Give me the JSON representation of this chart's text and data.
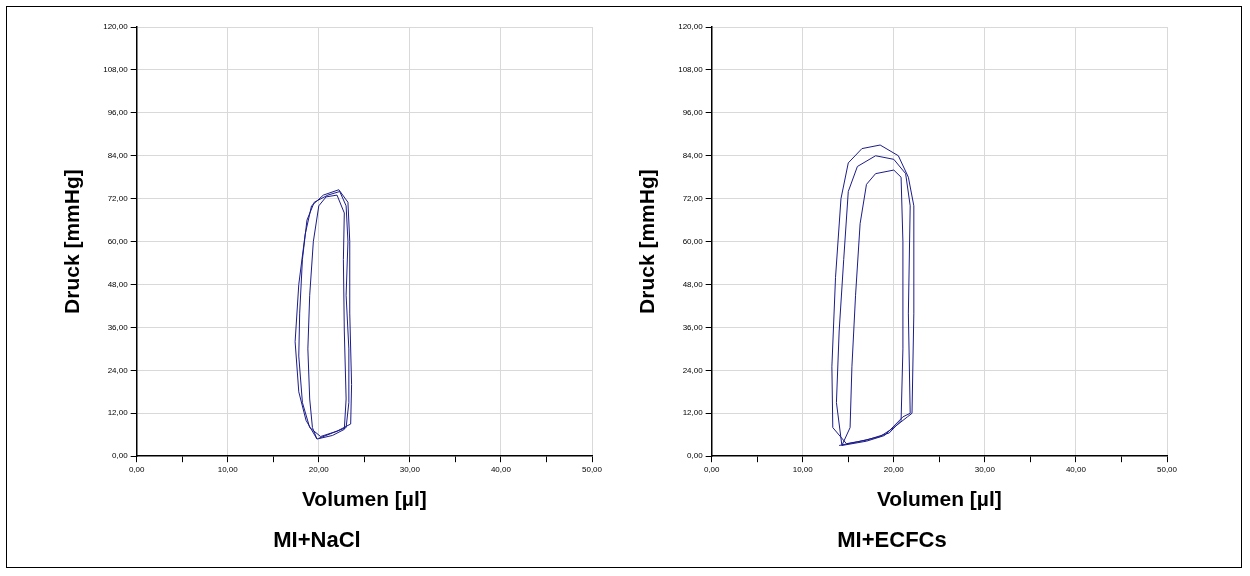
{
  "chart_data": [
    {
      "type": "line",
      "title": "MI+NaCl",
      "xlabel": "Volumen [µl]",
      "ylabel": "Druck [mmHg]",
      "xlim": [
        0,
        50
      ],
      "ylim": [
        0,
        120
      ],
      "grid": true,
      "legend": false,
      "marker": "none",
      "line_style": "solid",
      "xticks": [
        {
          "value": 0,
          "label": "0,00"
        },
        {
          "value": 5,
          "label": null
        },
        {
          "value": 10,
          "label": "10,00"
        },
        {
          "value": 15,
          "label": null
        },
        {
          "value": 20,
          "label": "20,00"
        },
        {
          "value": 25,
          "label": null
        },
        {
          "value": 30,
          "label": "30,00"
        },
        {
          "value": 35,
          "label": null
        },
        {
          "value": 40,
          "label": "40,00"
        },
        {
          "value": 45,
          "label": null
        },
        {
          "value": 50,
          "label": "50,00"
        }
      ],
      "yticks": [
        {
          "value": 0,
          "label": "0,00"
        },
        {
          "value": 12,
          "label": "12,00"
        },
        {
          "value": 24,
          "label": "24,00"
        },
        {
          "value": 36,
          "label": "36,00"
        },
        {
          "value": 48,
          "label": "48,00"
        },
        {
          "value": 60,
          "label": "60,00"
        },
        {
          "value": 72,
          "label": "72,00"
        },
        {
          "value": 84,
          "label": "84,00"
        },
        {
          "value": 96,
          "label": "96,00"
        },
        {
          "value": 108,
          "label": "108,00"
        },
        {
          "value": 120,
          "label": "120,00"
        }
      ],
      "series": [
        {
          "color": "#1c1c8a",
          "x": [
            20,
            21.5,
            23,
            23.3,
            23.3,
            23,
            23.2,
            23,
            22.3,
            21,
            19.5,
            18.7,
            18.2,
            17.9,
            17.8,
            18.2,
            19,
            20.2,
            22,
            23.5,
            23.6,
            23.4,
            23.4,
            23.2,
            22.2,
            20.5,
            19.2,
            18.5,
            17.8,
            17.4,
            17.8,
            18.6,
            19.8,
            21.5,
            22.8,
            23,
            22.8,
            22.7,
            22.8,
            22,
            20.8,
            20,
            19.4,
            19,
            18.8,
            19,
            19.3,
            19.8
          ],
          "values": [
            5,
            6.5,
            8,
            15,
            30,
            45,
            60,
            70,
            74,
            73,
            71,
            66,
            55,
            40,
            28,
            15,
            8,
            5.5,
            7,
            9,
            20,
            40,
            60,
            71,
            74.5,
            73,
            70,
            62,
            48,
            32,
            18,
            10,
            4.8,
            5.8,
            7.5,
            16,
            35,
            55,
            68,
            73,
            72.5,
            70,
            60,
            45,
            30,
            16,
            8,
            4.8
          ]
        }
      ]
    },
    {
      "type": "line",
      "title": "MI+ECFCs",
      "xlabel": "Volumen [µl]",
      "ylabel": "Druck [mmHg]",
      "xlim": [
        0,
        50
      ],
      "ylim": [
        0,
        120
      ],
      "grid": true,
      "legend": false,
      "marker": "none",
      "line_style": "solid",
      "xticks": [
        {
          "value": 0,
          "label": "0,00"
        },
        {
          "value": 5,
          "label": null
        },
        {
          "value": 10,
          "label": "10,00"
        },
        {
          "value": 15,
          "label": null
        },
        {
          "value": 20,
          "label": "20,00"
        },
        {
          "value": 25,
          "label": null
        },
        {
          "value": 30,
          "label": "30,00"
        },
        {
          "value": 35,
          "label": null
        },
        {
          "value": 40,
          "label": "40,00"
        },
        {
          "value": 45,
          "label": null
        },
        {
          "value": 50,
          "label": "50,00"
        }
      ],
      "yticks": [
        {
          "value": 0,
          "label": "0,00"
        },
        {
          "value": 12,
          "label": "12,00"
        },
        {
          "value": 24,
          "label": "24,00"
        },
        {
          "value": 36,
          "label": "36,00"
        },
        {
          "value": 48,
          "label": "48,00"
        },
        {
          "value": 60,
          "label": "60,00"
        },
        {
          "value": 72,
          "label": "72,00"
        },
        {
          "value": 84,
          "label": "84,00"
        },
        {
          "value": 96,
          "label": "96,00"
        },
        {
          "value": 108,
          "label": "108,00"
        },
        {
          "value": 120,
          "label": "120,00"
        }
      ],
      "series": [
        {
          "color": "#1c1c8a",
          "x": [
            14,
            16,
            18.5,
            20,
            21.5,
            22,
            22.2,
            22.2,
            21.6,
            20.5,
            18.5,
            16.5,
            15,
            14.2,
            13.6,
            13.2,
            13.3,
            14.8,
            17,
            19.5,
            20.8,
            21,
            21,
            20.8,
            20,
            18,
            17,
            16.3,
            15.8,
            15.4,
            15.2,
            14.3,
            17,
            19,
            21,
            21.8,
            21.6,
            21.8,
            21.3,
            20,
            18,
            16,
            15,
            14.5,
            14,
            13.7,
            14.3
          ],
          "values": [
            3,
            4,
            5.5,
            8,
            11,
            12,
            40,
            70,
            78,
            84,
            87,
            86,
            82,
            72,
            50,
            25,
            8,
            3.5,
            4.5,
            6.5,
            10,
            30,
            60,
            78,
            80,
            79,
            76,
            65,
            45,
            25,
            8,
            3,
            4.2,
            5.8,
            11,
            12,
            40,
            70,
            79,
            83,
            84,
            81,
            74,
            55,
            35,
            15,
            3
          ]
        }
      ]
    }
  ]
}
